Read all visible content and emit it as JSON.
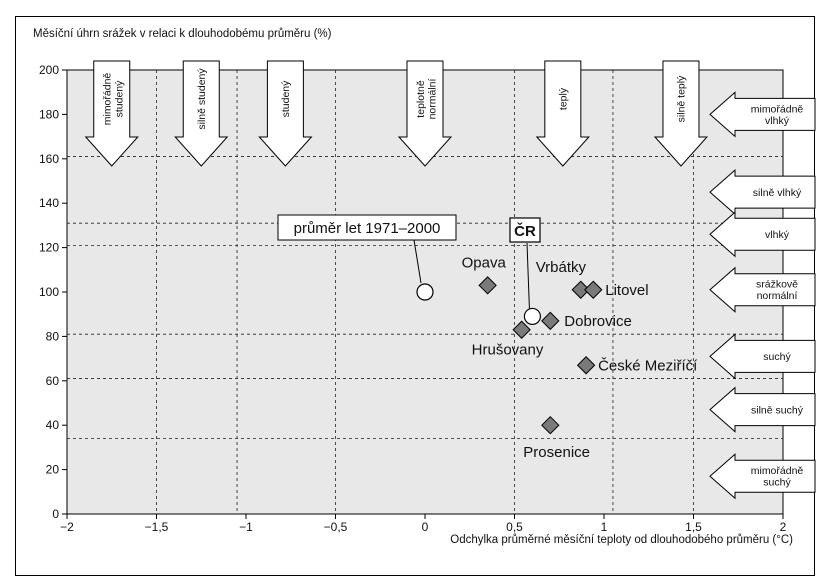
{
  "chart_data": {
    "type": "scatter",
    "ylabel": "Měsíční úhrn srážek v relaci k dlouhodobému průměru (%)",
    "xlabel": "Odchylka průměrné měsíční teploty od dlouhodobého průměru (°C)",
    "xlim": [
      -2,
      2
    ],
    "ylim": [
      0,
      200
    ],
    "x_ticks": [
      -2,
      -1.5,
      -1,
      -0.5,
      0,
      0.5,
      1,
      1.5,
      2
    ],
    "x_tick_labels": [
      "−2",
      "−1,5",
      "−1",
      "−0,5",
      "0",
      "0,5",
      "1",
      "1,5",
      "2"
    ],
    "y_ticks": [
      0,
      20,
      40,
      60,
      80,
      100,
      120,
      140,
      160,
      180,
      200
    ],
    "y_tick_labels": [
      "0",
      "20",
      "40",
      "60",
      "80",
      "100",
      "120",
      "140",
      "160",
      "180",
      "200"
    ],
    "grid": "dashed",
    "colors": {
      "plot_background": "#e8e8e8",
      "station_marker": "#7a7a7a",
      "reference_marker": "#ffffff"
    },
    "temperature_boundaries": [
      -1.5,
      -1.05,
      -0.5,
      0.5,
      1.05,
      1.5
    ],
    "precipitation_boundaries": [
      34,
      61,
      81,
      121,
      131,
      161
    ],
    "temperature_categories": [
      {
        "label": "mimořádně studený",
        "x_center": -1.75
      },
      {
        "label": "silně studený",
        "x_center": -1.25
      },
      {
        "label": "studený",
        "x_center": -0.78
      },
      {
        "label": "teplotně normální",
        "x_center": 0
      },
      {
        "label": "teplý",
        "x_center": 0.77
      },
      {
        "label": "silně teplý",
        "x_center": 1.43
      }
    ],
    "precipitation_categories": [
      {
        "label": "mimořádně vlhký",
        "y_center": 180
      },
      {
        "label": "silně vlhký",
        "y_center": 145
      },
      {
        "label": "vlhký",
        "y_center": 126
      },
      {
        "label": "srážkově normální",
        "y_center": 101
      },
      {
        "label": "suchý",
        "y_center": 71
      },
      {
        "label": "silně suchý",
        "y_center": 47
      },
      {
        "label": "mimořádně suchý",
        "y_center": 17
      }
    ],
    "stations": [
      {
        "name": "Opava",
        "x": 0.35,
        "y": 103
      },
      {
        "name": "Vrbátky",
        "x": 0.87,
        "y": 101
      },
      {
        "name": "Litovel",
        "x": 0.94,
        "y": 101
      },
      {
        "name": "Dobrovice",
        "x": 0.7,
        "y": 87
      },
      {
        "name": "Hrušovany",
        "x": 0.54,
        "y": 83
      },
      {
        "name": "České Meziříčí",
        "x": 0.9,
        "y": 67
      },
      {
        "name": "Prosenice",
        "x": 0.7,
        "y": 40
      }
    ],
    "reference_points": [
      {
        "name": "průměr let 1971–2000",
        "x": 0,
        "y": 100
      },
      {
        "name": "ČR",
        "x": 0.6,
        "y": 89
      }
    ]
  }
}
